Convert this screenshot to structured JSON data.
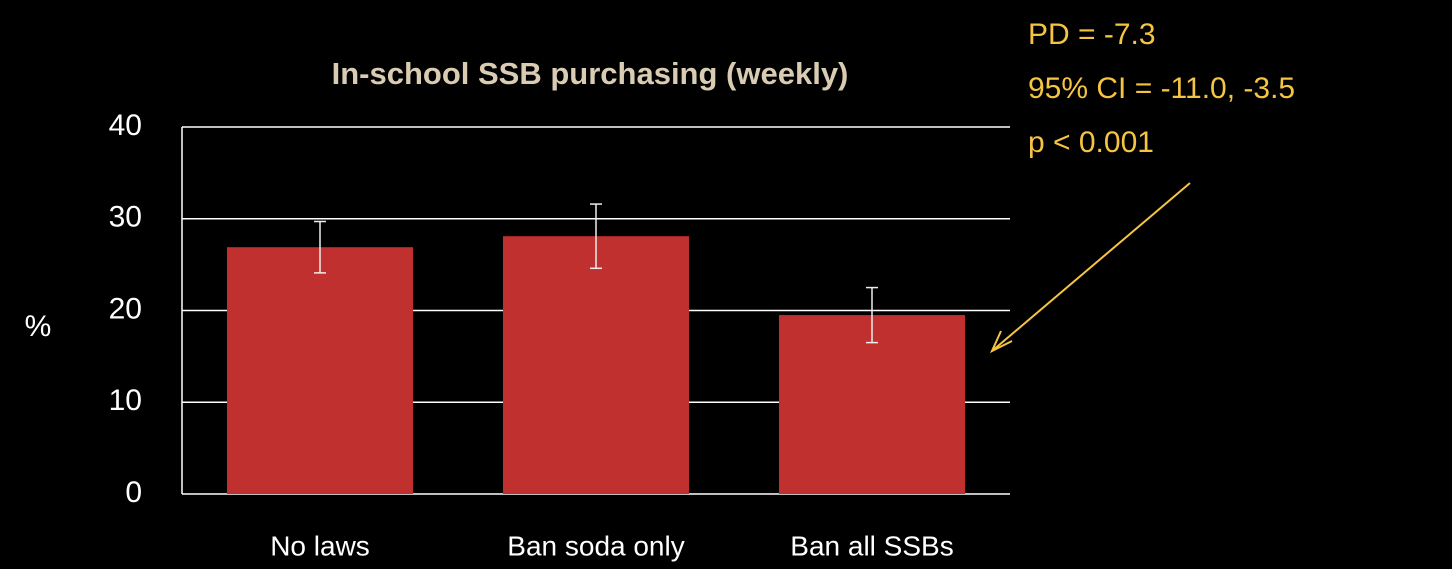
{
  "chart_data": {
    "type": "bar",
    "title": "In-school SSB purchasing (weekly)",
    "y_label": "%",
    "categories": [
      "No laws",
      "Ban soda only",
      "Ban all SSBs"
    ],
    "values": [
      26.9,
      28.1,
      19.5
    ],
    "errors": [
      2.8,
      3.5,
      3.0
    ],
    "color": "#c0302f",
    "ylim": [
      0,
      40
    ],
    "yticks": [
      0,
      10,
      20,
      30,
      40
    ],
    "grid": true,
    "annotation": [
      "PD = -7.3",
      "95% CI = -11.0, -3.5",
      "p < 0.001"
    ]
  }
}
